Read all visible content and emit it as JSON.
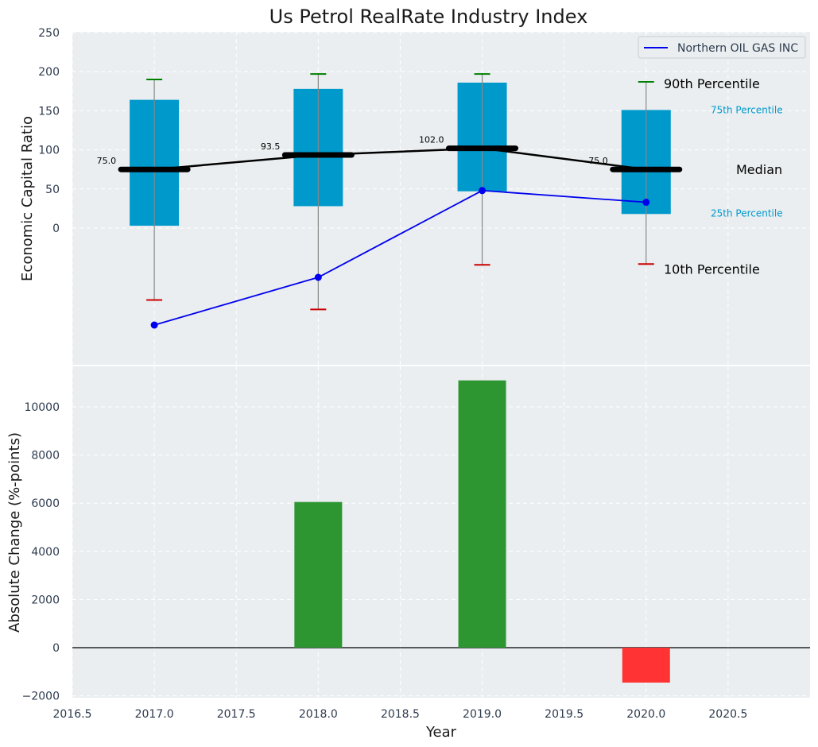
{
  "colors": {
    "panel_bg": "#eaeef0",
    "grid": "#ffffff",
    "box_fill": "#0099cc",
    "whisker": "#888888",
    "cap_high": "#008000",
    "cap_low": "#cc0000",
    "median": "#000000",
    "company_line": "#0000ee",
    "bar_positive": "#2e9631",
    "bar_negative": "#ff3333",
    "p75_label": "#0099cc",
    "p25_label": "#0099cc"
  },
  "chart_data": [
    {
      "type": "box",
      "title": "Us Petrol RealRate Industry Index",
      "ylabel": "Economic Capital Ratio",
      "ylim": [
        -175,
        250
      ],
      "yticks": [
        "0",
        "50",
        "100",
        "150",
        "200",
        "250"
      ],
      "x": [
        2017,
        2018,
        2019,
        2020
      ],
      "boxes": [
        {
          "year": 2017,
          "p10": -92,
          "p25": 3,
          "median": 75,
          "p75": 164,
          "p90": 190
        },
        {
          "year": 2018,
          "p10": -104,
          "p25": 28,
          "median": 93.5,
          "p75": 178,
          "p90": 197
        },
        {
          "year": 2019,
          "p10": -47,
          "p25": 47,
          "median": 102,
          "p75": 186,
          "p90": 197
        },
        {
          "year": 2020,
          "p10": -46,
          "p25": 18,
          "median": 75,
          "p75": 151,
          "p90": 187
        }
      ],
      "median_labels": [
        "75.0",
        "93.5",
        "102.0",
        "75.0"
      ],
      "series": [
        {
          "name": "Northern OIL GAS INC",
          "values": [
            -124,
            -63,
            48,
            33
          ]
        }
      ],
      "legend": [
        "Northern OIL GAS INC"
      ],
      "annotations": {
        "p90": "90th Percentile",
        "p75": "75th Percentile",
        "median": "Median",
        "p25": "25th Percentile",
        "p10": "10th Percentile"
      }
    },
    {
      "type": "bar",
      "xlabel": "Year",
      "ylabel": "Absolute Change (%-points)",
      "ylim": [
        -2000,
        11900
      ],
      "yticks": [
        "−2000",
        "0",
        "2000",
        "4000",
        "6000",
        "8000",
        "10000"
      ],
      "xticks": [
        "2016.5",
        "2017.0",
        "2017.5",
        "2018.0",
        "2018.5",
        "2019.0",
        "2019.5",
        "2020.0",
        "2020.5"
      ],
      "xlim": [
        2016.5,
        2021
      ],
      "categories": [
        2018,
        2019,
        2020
      ],
      "values": [
        6050,
        11100,
        -1450
      ]
    }
  ]
}
